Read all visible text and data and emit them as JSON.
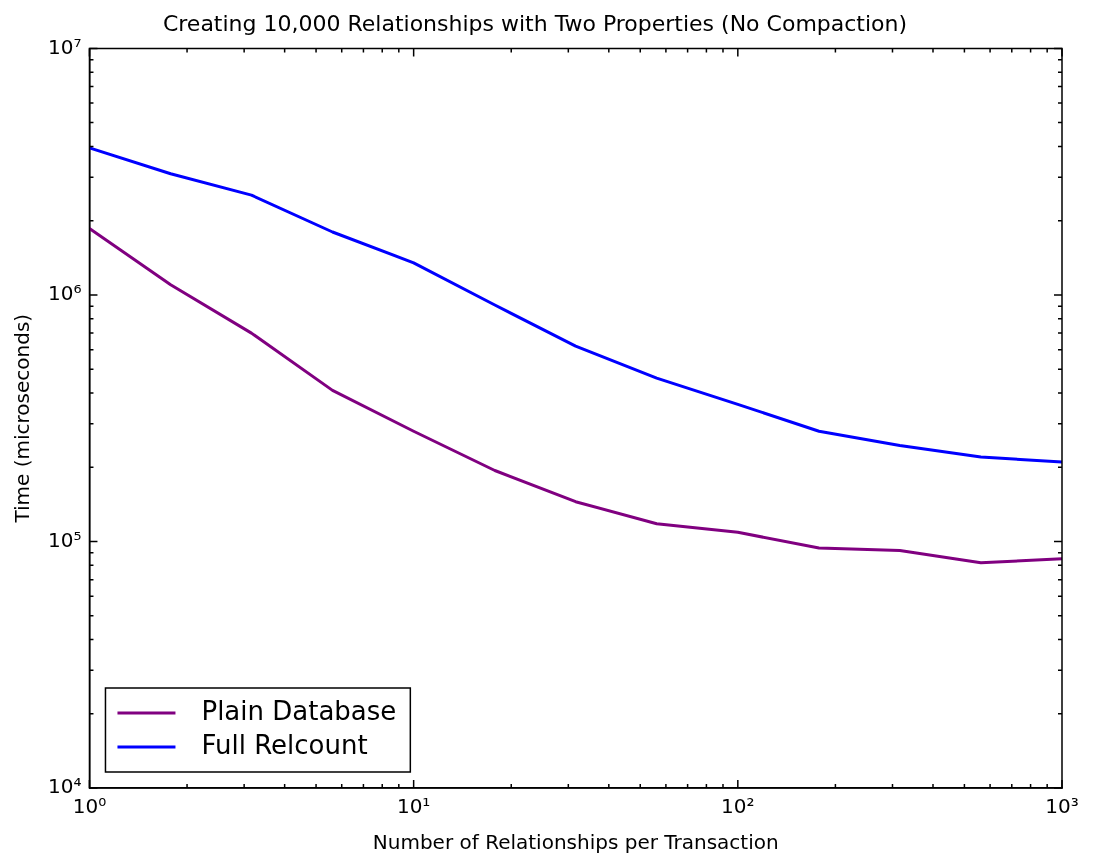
{
  "chart_data": {
    "type": "line",
    "title": "Creating 10,000 Relationships with Two Properties (No Compaction)",
    "xlabel": "Number of Relationships per Transaction",
    "ylabel": "Time (microseconds)",
    "x": [
      1,
      1.78,
      3.16,
      5.62,
      10,
      17.8,
      31.6,
      56.2,
      100,
      178,
      316,
      562,
      1000
    ],
    "series": [
      {
        "name": "Plain Database",
        "color": "#800080",
        "values": [
          1860000,
          1100000,
          700000,
          410000,
          280000,
          194000,
          145000,
          118000,
          109000,
          94000,
          92000,
          82000,
          85000
        ]
      },
      {
        "name": "Full Relcount",
        "color": "#0000ff",
        "values": [
          3950000,
          3100000,
          2540000,
          1800000,
          1350000,
          910000,
          620000,
          460000,
          360000,
          280000,
          245000,
          220000,
          210000
        ]
      }
    ],
    "log": "xy",
    "xlim": [
      1,
      1000
    ],
    "ylim": [
      10000,
      10000000
    ],
    "xticks": [
      {
        "value": 1,
        "label": "10⁰"
      },
      {
        "value": 2,
        "label": null
      },
      {
        "value": 3,
        "label": null
      },
      {
        "value": 4,
        "label": null
      },
      {
        "value": 5,
        "label": null
      },
      {
        "value": 6,
        "label": null
      },
      {
        "value": 7,
        "label": null
      },
      {
        "value": 8,
        "label": null
      },
      {
        "value": 9,
        "label": null
      },
      {
        "value": 10,
        "label": "10¹"
      },
      {
        "value": 20,
        "label": null
      },
      {
        "value": 30,
        "label": null
      },
      {
        "value": 40,
        "label": null
      },
      {
        "value": 50,
        "label": null
      },
      {
        "value": 60,
        "label": null
      },
      {
        "value": 70,
        "label": null
      },
      {
        "value": 80,
        "label": null
      },
      {
        "value": 90,
        "label": null
      },
      {
        "value": 100,
        "label": "10²"
      },
      {
        "value": 200,
        "label": null
      },
      {
        "value": 300,
        "label": null
      },
      {
        "value": 400,
        "label": null
      },
      {
        "value": 500,
        "label": null
      },
      {
        "value": 600,
        "label": null
      },
      {
        "value": 700,
        "label": null
      },
      {
        "value": 800,
        "label": null
      },
      {
        "value": 900,
        "label": null
      },
      {
        "value": 1000,
        "label": "10³"
      }
    ],
    "yticks": [
      {
        "value": 10000,
        "label": "10⁴"
      },
      {
        "value": 20000,
        "label": null
      },
      {
        "value": 30000,
        "label": null
      },
      {
        "value": 40000,
        "label": null
      },
      {
        "value": 50000,
        "label": null
      },
      {
        "value": 60000,
        "label": null
      },
      {
        "value": 70000,
        "label": null
      },
      {
        "value": 80000,
        "label": null
      },
      {
        "value": 90000,
        "label": null
      },
      {
        "value": 100000,
        "label": "10⁵"
      },
      {
        "value": 200000,
        "label": null
      },
      {
        "value": 300000,
        "label": null
      },
      {
        "value": 400000,
        "label": null
      },
      {
        "value": 500000,
        "label": null
      },
      {
        "value": 600000,
        "label": null
      },
      {
        "value": 700000,
        "label": null
      },
      {
        "value": 800000,
        "label": null
      },
      {
        "value": 900000,
        "label": null
      },
      {
        "value": 1000000,
        "label": "10⁶"
      },
      {
        "value": 2000000,
        "label": null
      },
      {
        "value": 3000000,
        "label": null
      },
      {
        "value": 4000000,
        "label": null
      },
      {
        "value": 5000000,
        "label": null
      },
      {
        "value": 6000000,
        "label": null
      },
      {
        "value": 7000000,
        "label": null
      },
      {
        "value": 8000000,
        "label": null
      },
      {
        "value": 9000000,
        "label": null
      },
      {
        "value": 10000000,
        "label": "10⁷"
      }
    ],
    "grid": false,
    "legend": "bottom left",
    "marker": "none",
    "line_style": "solid"
  }
}
